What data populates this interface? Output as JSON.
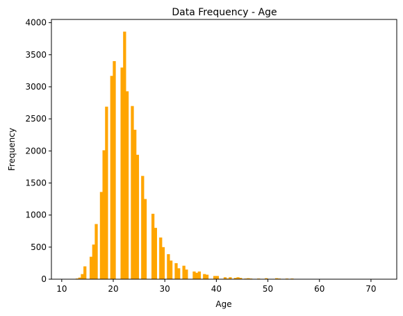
{
  "chart_data": {
    "type": "bar",
    "title": "Data Frequency - Age",
    "xlabel": "Age",
    "ylabel": "Frequency",
    "xlim": [
      8,
      75
    ],
    "ylim": [
      0,
      4050
    ],
    "xticks": [
      10,
      20,
      30,
      40,
      50,
      60,
      70
    ],
    "yticks": [
      0,
      500,
      1000,
      1500,
      2000,
      2500,
      3000,
      3500,
      4000
    ],
    "grid": false,
    "bar_color": "#ffa500",
    "bar_width": 0.58,
    "series": [
      {
        "x": [
          11,
          12,
          13,
          13.5,
          14,
          14.5,
          15.7,
          16.2,
          16.7,
          17.7,
          18.2,
          18.7,
          19.7,
          20.2,
          21.7,
          22.2,
          22.7,
          23.7,
          24.2,
          24.7,
          25.7,
          26.2,
          27.7,
          28.2,
          29.2,
          29.7,
          30.7,
          31.2,
          32.2,
          32.7,
          33.7,
          34.2,
          35.7,
          36.2,
          36.7,
          37.7,
          38.2,
          39.7,
          40.2,
          41.7,
          42.2,
          42.7,
          43.7,
          44.2,
          44.7,
          45.7,
          46.2,
          46.7,
          47.7,
          48.2,
          49.7,
          50.2,
          51.7,
          52.2,
          52.7,
          53.7,
          54.2,
          54.7,
          55.7,
          56.2,
          57.7,
          58.2,
          59.7,
          60.2,
          61.7,
          62.2,
          63.7,
          64.2,
          64.7,
          65.7,
          66.2,
          67.7,
          68.2,
          69.7,
          70.2,
          71.7,
          72.2
        ],
        "values": [
          2,
          5,
          10,
          25,
          80,
          200,
          350,
          540,
          860,
          1360,
          2010,
          2690,
          3170,
          3400,
          3300,
          3860,
          2930,
          2700,
          2330,
          1940,
          1610,
          1250,
          1020,
          800,
          650,
          500,
          390,
          290,
          250,
          170,
          210,
          150,
          120,
          100,
          120,
          80,
          70,
          50,
          50,
          30,
          10,
          30,
          20,
          30,
          20,
          10,
          15,
          10,
          5,
          10,
          15,
          5,
          15,
          10,
          5,
          10,
          5,
          10,
          5,
          5,
          3,
          5,
          2,
          3,
          2,
          3,
          2,
          2,
          1,
          2,
          1,
          1,
          2,
          1,
          1,
          1,
          1
        ]
      }
    ]
  }
}
